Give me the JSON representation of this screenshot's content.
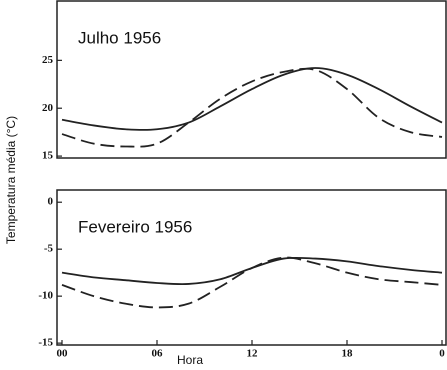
{
  "chart_data": [
    {
      "type": "line",
      "title": "Julho 1956",
      "y_label": "Temperatura média (°C)",
      "x": [
        0,
        2,
        4,
        6,
        8,
        10,
        12,
        14,
        16,
        18,
        20,
        22,
        24
      ],
      "series": [
        {
          "color": "#222222",
          "dash": false,
          "values": [
            18.8,
            18.2,
            17.8,
            17.8,
            18.5,
            20.2,
            22.0,
            23.5,
            24.2,
            23.5,
            22.0,
            20.2,
            18.5
          ]
        },
        {
          "color": "#222222",
          "dash": true,
          "values": [
            17.3,
            16.3,
            16.0,
            16.3,
            18.5,
            21.0,
            22.8,
            23.8,
            24.0,
            22.0,
            19.0,
            17.5,
            17.0
          ]
        }
      ],
      "xlim": [
        0,
        24
      ],
      "ylim": [
        14.8,
        31.2
      ],
      "yticks": [
        15,
        20,
        25
      ]
    },
    {
      "type": "line",
      "title": "Fevereiro 1956",
      "x_label": "Hora",
      "x": [
        0,
        2,
        4,
        6,
        8,
        10,
        12,
        14,
        16,
        18,
        20,
        22,
        24
      ],
      "series": [
        {
          "color": "#222222",
          "dash": false,
          "values": [
            -7.5,
            -8.0,
            -8.3,
            -8.6,
            -8.7,
            -8.2,
            -7.0,
            -6.0,
            -6.0,
            -6.3,
            -6.8,
            -7.2,
            -7.5
          ]
        },
        {
          "color": "#222222",
          "dash": true,
          "values": [
            -8.8,
            -10.0,
            -10.8,
            -11.2,
            -10.8,
            -9.0,
            -7.0,
            -5.9,
            -6.5,
            -7.5,
            -8.2,
            -8.5,
            -8.8
          ]
        }
      ],
      "xlim": [
        0,
        24
      ],
      "ylim": [
        -15.2,
        1.3
      ],
      "yticks": [
        0,
        -5,
        -10,
        -15
      ],
      "xticks": [
        {
          "value": 0,
          "label": "00"
        },
        {
          "value": 6,
          "label": "06"
        },
        12,
        18,
        {
          "value": 24,
          "label": "0"
        }
      ]
    }
  ]
}
